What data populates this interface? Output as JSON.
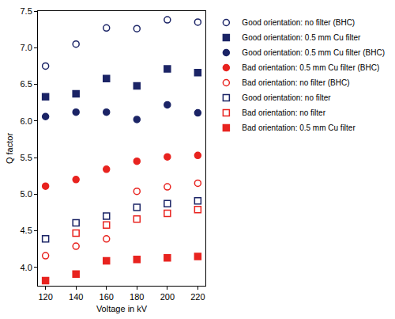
{
  "chart_data": {
    "type": "scatter",
    "x_label": "Voltage in kV",
    "y_label": "Q factor",
    "x": [
      120,
      140,
      160,
      180,
      200,
      220
    ],
    "xlim": [
      115,
      225
    ],
    "xticks": [
      120,
      140,
      160,
      180,
      200,
      220
    ],
    "ylim": [
      3.75,
      7.5
    ],
    "yticks": [
      {
        "value": 4,
        "label": "4.0"
      },
      4.5,
      {
        "value": 5,
        "label": "5.0"
      },
      5.5,
      {
        "value": 6,
        "label": "6.0"
      },
      6.5,
      {
        "value": 7,
        "label": "7.0"
      },
      7.5
    ],
    "grid": false,
    "legend": "right",
    "series": [
      {
        "name": "Good orientation: no filter (BHC)",
        "color": "#1b2466",
        "marker": "circle-open",
        "values": [
          6.75,
          7.05,
          7.27,
          7.26,
          7.38,
          7.35
        ]
      },
      {
        "name": "Good orientation: 0.5 mm Cu filter",
        "color": "#1b2466",
        "marker": "square",
        "values": [
          6.33,
          6.37,
          6.58,
          6.48,
          6.71,
          6.66
        ]
      },
      {
        "name": "Good orientation: 0.5 mm Cu filter (BHC)",
        "color": "#1b2466",
        "marker": "circle",
        "values": [
          6.06,
          6.12,
          6.12,
          6.02,
          6.22,
          6.11
        ]
      },
      {
        "name": "Bad orientation: 0.5 mm Cu filter (BHC)",
        "color": "#e8231f",
        "marker": "circle",
        "values": [
          5.11,
          5.2,
          5.34,
          5.45,
          5.51,
          5.53
        ]
      },
      {
        "name": "Bad orientation: no filter (BHC)",
        "color": "#e8231f",
        "marker": "circle-open",
        "values": [
          4.16,
          4.29,
          4.39,
          5.04,
          5.1,
          5.15
        ]
      },
      {
        "name": "Good orientation: no filter",
        "color": "#1b2466",
        "marker": "square-open",
        "values": [
          4.39,
          4.61,
          4.7,
          4.82,
          4.87,
          4.91
        ]
      },
      {
        "name": "Bad orientation: no filter",
        "color": "#e8231f",
        "marker": "square-open",
        "values": [
          null,
          4.47,
          4.58,
          4.66,
          4.74,
          4.79
        ]
      },
      {
        "name": "Bad orientation: 0.5 mm Cu filter",
        "color": "#e8231f",
        "marker": "square",
        "values": [
          3.82,
          3.91,
          4.09,
          4.11,
          4.13,
          4.15
        ]
      }
    ]
  }
}
